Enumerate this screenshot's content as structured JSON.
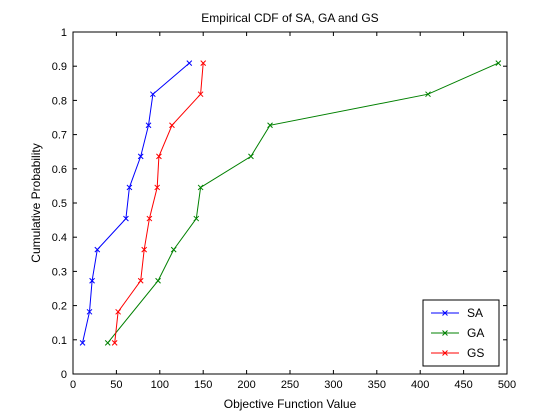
{
  "chart_data": {
    "type": "line",
    "title": "Empirical CDF of SA, GA and GS",
    "xlabel": "Objective Function Value",
    "ylabel": "Cumulative Probability",
    "xlim": [
      0,
      500
    ],
    "ylim": [
      0,
      1
    ],
    "xticks": [
      0,
      50,
      100,
      150,
      200,
      250,
      300,
      350,
      400,
      450,
      500
    ],
    "yticks": [
      0,
      0.1,
      0.2,
      0.3,
      0.4,
      0.5,
      0.6,
      0.7,
      0.8,
      0.9,
      1
    ],
    "xtick_labels": [
      "0",
      "50",
      "100",
      "150",
      "200",
      "250",
      "300",
      "350",
      "400",
      "450",
      "500"
    ],
    "ytick_labels": [
      "0",
      "0.1",
      "0.2",
      "0.3",
      "0.4",
      "0.5",
      "0.6",
      "0.7",
      "0.8",
      "0.9",
      "1"
    ],
    "grid": false,
    "legend_position": "bottom-right",
    "marker": "x",
    "series": [
      {
        "name": "SA",
        "color": "#0000ff",
        "x": [
          11,
          19,
          22,
          28,
          61,
          65,
          78,
          87,
          92,
          134
        ],
        "y": [
          0.0909,
          0.1818,
          0.2727,
          0.3636,
          0.4545,
          0.5455,
          0.6364,
          0.7273,
          0.8182,
          0.9091
        ]
      },
      {
        "name": "GA",
        "color": "#008000",
        "x": [
          40,
          98,
          116,
          142,
          147,
          205,
          227,
          409,
          490
        ],
        "y": [
          0.0909,
          0.2727,
          0.3636,
          0.4545,
          0.5455,
          0.6364,
          0.7273,
          0.8182,
          0.9091
        ]
      },
      {
        "name": "GS",
        "color": "#ff0000",
        "x": [
          48,
          52,
          78,
          82,
          88,
          97,
          99,
          114,
          147,
          150
        ],
        "y": [
          0.0909,
          0.1818,
          0.2727,
          0.3636,
          0.4545,
          0.5455,
          0.6364,
          0.7273,
          0.8182,
          0.9091
        ]
      }
    ]
  }
}
